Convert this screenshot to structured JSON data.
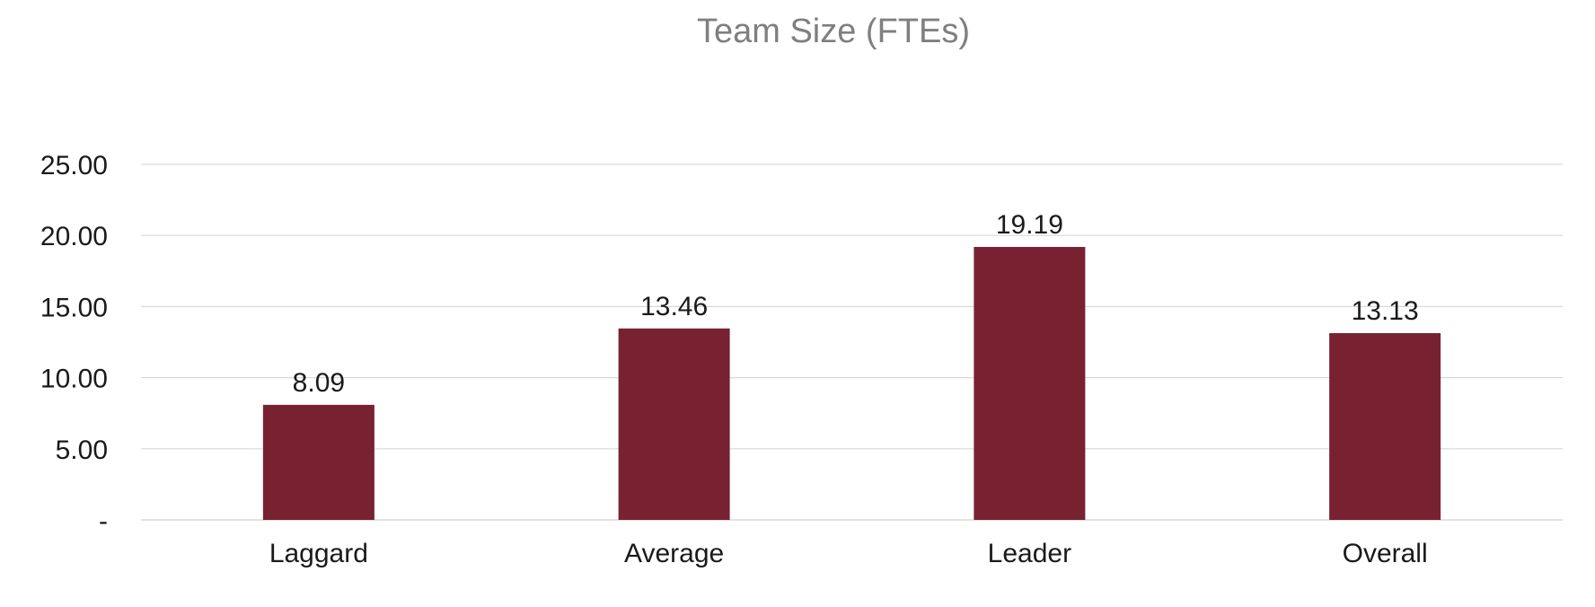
{
  "chart_data": {
    "type": "bar",
    "title": "Team Size (FTEs)",
    "xlabel": "",
    "ylabel": "",
    "categories": [
      "Laggard",
      "Average",
      "Leader",
      "Overall"
    ],
    "values": [
      8.09,
      13.46,
      19.19,
      13.13
    ],
    "value_labels": [
      "8.09",
      "13.46",
      "19.19",
      "13.13"
    ],
    "ylim": [
      0,
      25
    ],
    "yticks": [
      0,
      5,
      10,
      15,
      20,
      25
    ],
    "ytick_labels": [
      "-",
      "5.00",
      "10.00",
      "15.00",
      "20.00",
      "25.00"
    ],
    "grid": true,
    "legend": "none",
    "bar_color": "#782231"
  }
}
